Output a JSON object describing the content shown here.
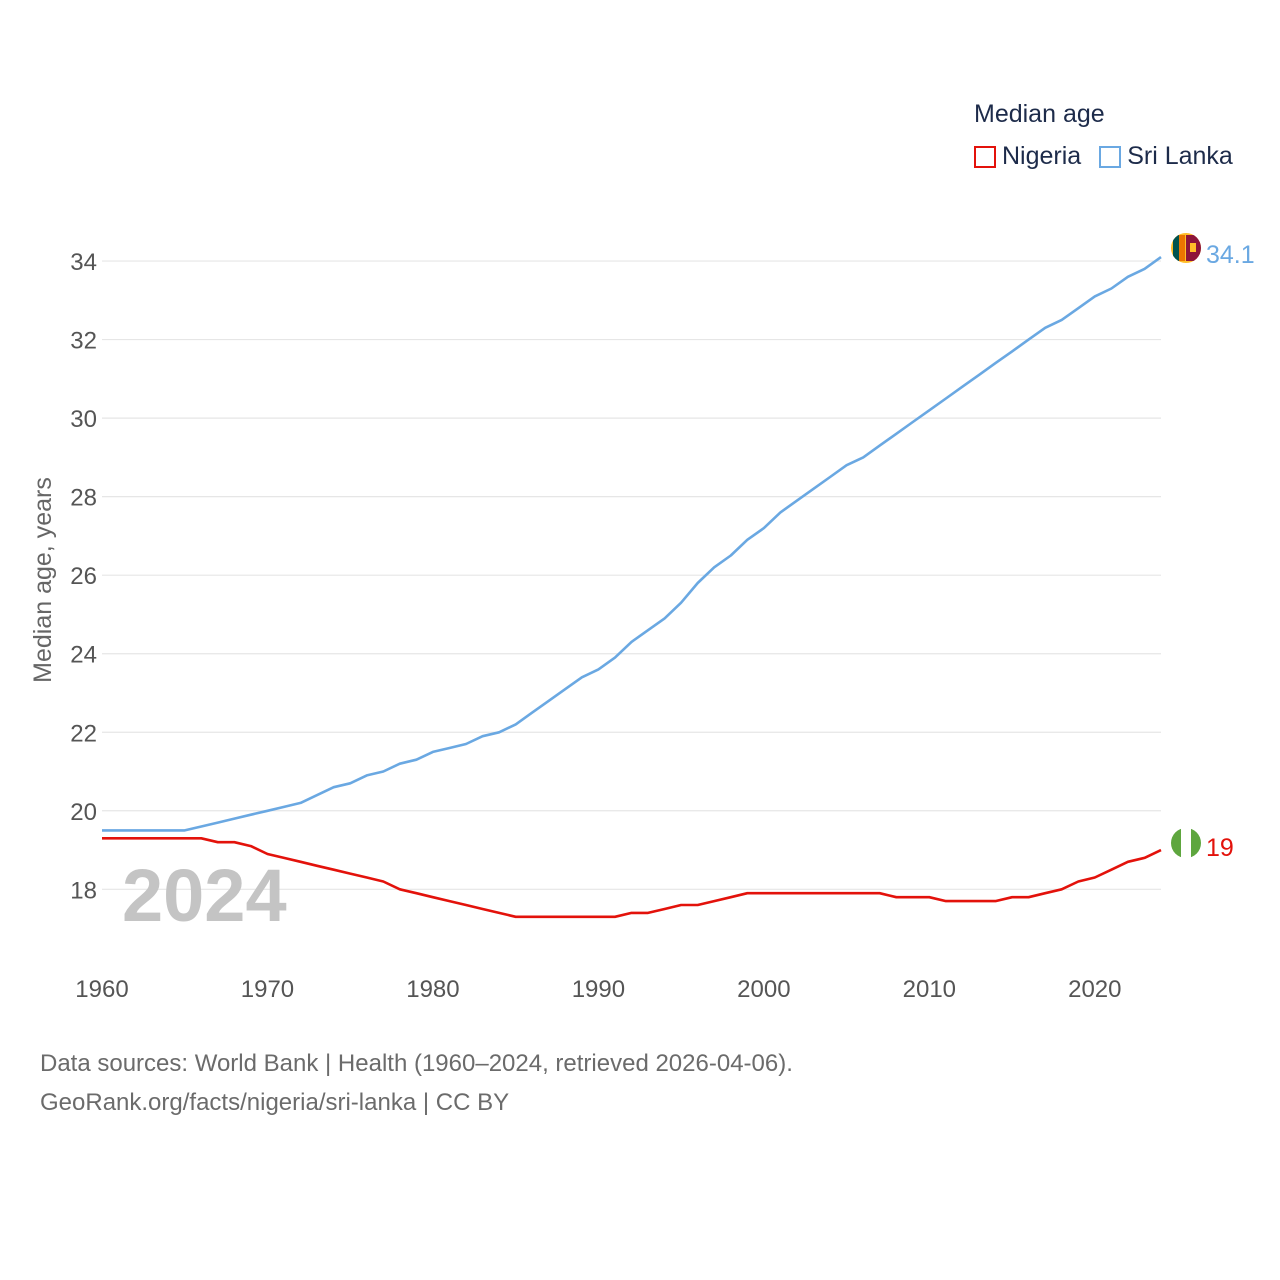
{
  "legend": {
    "title": "Median age",
    "items": [
      {
        "name": "Nigeria",
        "color": "#e3120b"
      },
      {
        "name": "Sri Lanka",
        "color": "#6aa8e2"
      }
    ]
  },
  "year_label": "2024",
  "footer": {
    "line1": "Data sources: World Bank | Health (1960–2024, retrieved 2026-04-06).",
    "line2": "GeoRank.org/facts/nigeria/sri-lanka | CC BY"
  },
  "chart_data": {
    "type": "line",
    "title": "Median age",
    "xlabel": "",
    "ylabel": "Median age, years",
    "xlim": [
      1960,
      2024
    ],
    "ylim": [
      16.2,
      35.3
    ],
    "grid": true,
    "xticks": [
      1960,
      1970,
      1980,
      1990,
      2000,
      2010,
      2020
    ],
    "yticks": [
      18,
      20,
      22,
      24,
      26,
      28,
      30,
      32,
      34
    ],
    "x": [
      1960,
      1961,
      1962,
      1963,
      1964,
      1965,
      1966,
      1967,
      1968,
      1969,
      1970,
      1971,
      1972,
      1973,
      1974,
      1975,
      1976,
      1977,
      1978,
      1979,
      1980,
      1981,
      1982,
      1983,
      1984,
      1985,
      1986,
      1987,
      1988,
      1989,
      1990,
      1991,
      1992,
      1993,
      1994,
      1995,
      1996,
      1997,
      1998,
      1999,
      2000,
      2001,
      2002,
      2003,
      2004,
      2005,
      2006,
      2007,
      2008,
      2009,
      2010,
      2011,
      2012,
      2013,
      2014,
      2015,
      2016,
      2017,
      2018,
      2019,
      2020,
      2021,
      2022,
      2023,
      2024
    ],
    "series": [
      {
        "name": "Nigeria",
        "color": "#e3120b",
        "end_label": "19",
        "values": [
          19.3,
          19.3,
          19.3,
          19.3,
          19.3,
          19.3,
          19.3,
          19.2,
          19.2,
          19.1,
          18.9,
          18.8,
          18.7,
          18.6,
          18.5,
          18.4,
          18.3,
          18.2,
          18.0,
          17.9,
          17.8,
          17.7,
          17.6,
          17.5,
          17.4,
          17.3,
          17.3,
          17.3,
          17.3,
          17.3,
          17.3,
          17.3,
          17.4,
          17.4,
          17.5,
          17.6,
          17.6,
          17.7,
          17.8,
          17.9,
          17.9,
          17.9,
          17.9,
          17.9,
          17.9,
          17.9,
          17.9,
          17.9,
          17.8,
          17.8,
          17.8,
          17.7,
          17.7,
          17.7,
          17.7,
          17.8,
          17.8,
          17.9,
          18.0,
          18.2,
          18.3,
          18.5,
          18.7,
          18.8,
          19.0
        ]
      },
      {
        "name": "Sri Lanka",
        "color": "#6aa8e2",
        "end_label": "34.1",
        "values": [
          19.5,
          19.5,
          19.5,
          19.5,
          19.5,
          19.5,
          19.6,
          19.7,
          19.8,
          19.9,
          20.0,
          20.1,
          20.2,
          20.4,
          20.6,
          20.7,
          20.9,
          21.0,
          21.2,
          21.3,
          21.5,
          21.6,
          21.7,
          21.9,
          22.0,
          22.2,
          22.5,
          22.8,
          23.1,
          23.4,
          23.6,
          23.9,
          24.3,
          24.6,
          24.9,
          25.3,
          25.8,
          26.2,
          26.5,
          26.9,
          27.2,
          27.6,
          27.9,
          28.2,
          28.5,
          28.8,
          29.0,
          29.3,
          29.6,
          29.9,
          30.2,
          30.5,
          30.8,
          31.1,
          31.4,
          31.7,
          32.0,
          32.3,
          32.5,
          32.8,
          33.1,
          33.3,
          33.6,
          33.8,
          34.1
        ]
      }
    ]
  }
}
